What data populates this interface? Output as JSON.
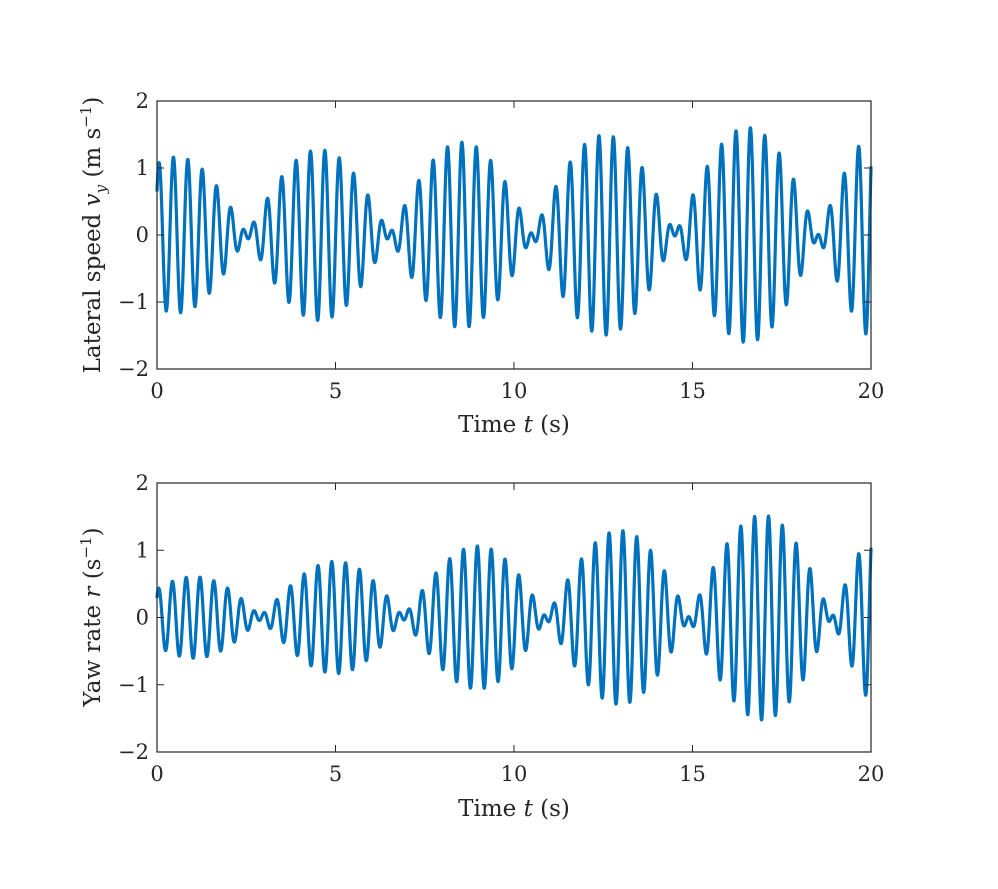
{
  "chart_data": [
    {
      "type": "line",
      "title": "",
      "xlabel": "Time t (s)",
      "ylabel": "Lateral speed v_y (m s^-1)",
      "ylabel_parts": {
        "main": "Lateral speed ",
        "var": "v",
        "sub": "y",
        "units_open": " (m s",
        "sup": "−1",
        "units_close": ")"
      },
      "xlabel_parts": {
        "main": "Time ",
        "var": "t",
        "units": " (s)"
      },
      "xlim": [
        0,
        20
      ],
      "ylim": [
        -2,
        2
      ],
      "xticks": [
        0,
        5,
        10,
        15,
        20
      ],
      "yticks": [
        -2,
        -1,
        0,
        1,
        2
      ],
      "xtick_labels": [
        "0",
        "5",
        "10",
        "15",
        "20"
      ],
      "ytick_labels": [
        "−2",
        "−1",
        "0",
        "1",
        "2"
      ],
      "grid": false,
      "color": "#0072BD",
      "series": [
        {
          "name": "lateral speed",
          "model": "beating oscillation",
          "t_step": 0.005,
          "components": [
            {
              "freq_hz": 2.6,
              "amp_start": 0.6,
              "amp_end": 0.85,
              "phase": 0.3
            },
            {
              "freq_hz": 2.35,
              "amp_start": 0.55,
              "amp_end": 0.85,
              "phase": 1.1
            }
          ]
        }
      ]
    },
    {
      "type": "line",
      "title": "",
      "xlabel": "Time t (s)",
      "ylabel": "Yaw rate r (s^-1)",
      "ylabel_parts": {
        "main": "Yaw rate ",
        "var": "r",
        "units_open": " (s",
        "sup": "−1",
        "units_close": ")"
      },
      "xlabel_parts": {
        "main": "Time ",
        "var": "t",
        "units": " (s)"
      },
      "xlim": [
        0,
        20
      ],
      "ylim": [
        -2,
        2
      ],
      "xticks": [
        0,
        5,
        10,
        15,
        20
      ],
      "yticks": [
        -2,
        -1,
        0,
        1,
        2
      ],
      "xtick_labels": [
        "0",
        "5",
        "10",
        "15",
        "20"
      ],
      "ytick_labels": [
        "−2",
        "−1",
        "0",
        "1",
        "2"
      ],
      "grid": false,
      "color": "#0072BD",
      "series": [
        {
          "name": "yaw rate",
          "model": "beating oscillation",
          "t_step": 0.005,
          "components": [
            {
              "freq_hz": 2.7,
              "amp_start": 0.3,
              "amp_end": 0.85,
              "phase": 0.2
            },
            {
              "freq_hz": 2.45,
              "amp_start": 0.25,
              "amp_end": 0.85,
              "phase": 1.6
            }
          ]
        }
      ]
    }
  ]
}
